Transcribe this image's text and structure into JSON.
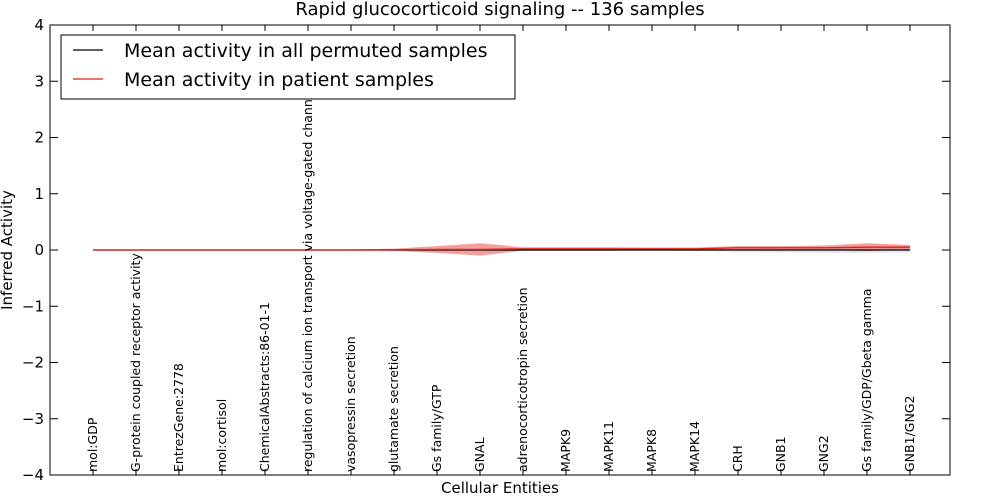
{
  "chart_data": {
    "type": "line",
    "title": "Rapid glucocorticoid signaling -- 136 samples",
    "xlabel": "Cellular Entities",
    "ylabel": "Inferred Activity",
    "ylim": [
      -4,
      4
    ],
    "yticks": [
      -4,
      -3,
      -2,
      -1,
      0,
      1,
      2,
      3,
      4
    ],
    "grid": false,
    "legend_position": "top-left",
    "categories": [
      "mol:GDP",
      "G-protein coupled receptor activity",
      "EntrezGene:2778",
      "mol:cortisol",
      "ChemicalAbstracts:86-01-1",
      "regulation of calcium ion transport via voltage-gated channel",
      "vasopressin secretion",
      "glutamate secretion",
      "Gs family/GTP",
      "GNAL",
      "adrenocorticotropin secretion",
      "MAPK9",
      "MAPK11",
      "MAPK8",
      "MAPK14",
      "CRH",
      "GNB1",
      "GNG2",
      "Gs family/GDP/Gbeta gamma",
      "GNB1/GNG2"
    ],
    "series": [
      {
        "name": "Mean activity in all permuted samples",
        "color": "#000000",
        "values": [
          0,
          0,
          0,
          0,
          0,
          0,
          0,
          0,
          0,
          0,
          0,
          0,
          0,
          0,
          0,
          0,
          0,
          0,
          0,
          0
        ],
        "band": [
          0.005,
          0.005,
          0.005,
          0.005,
          0.005,
          0.005,
          0.005,
          0.005,
          0.005,
          0.005,
          0.01,
          0.01,
          0.01,
          0.01,
          0.015,
          0.03,
          0.04,
          0.05,
          0.05,
          0.04
        ],
        "band_color": "#a8b4cc"
      },
      {
        "name": "Mean activity in patient samples",
        "color": "#e0211b",
        "values": [
          0,
          0,
          0,
          0,
          0,
          0,
          0,
          0.005,
          0.01,
          0.01,
          0.02,
          0.02,
          0.02,
          0.02,
          0.02,
          0.04,
          0.04,
          0.04,
          0.05,
          0.05
        ],
        "band": [
          0,
          0,
          0,
          0,
          0,
          0.005,
          0.01,
          0.02,
          0.06,
          0.11,
          0.03,
          0.03,
          0.03,
          0.025,
          0.025,
          0.03,
          0.03,
          0.04,
          0.07,
          0.04
        ],
        "band_color": "#e8403a"
      }
    ]
  }
}
